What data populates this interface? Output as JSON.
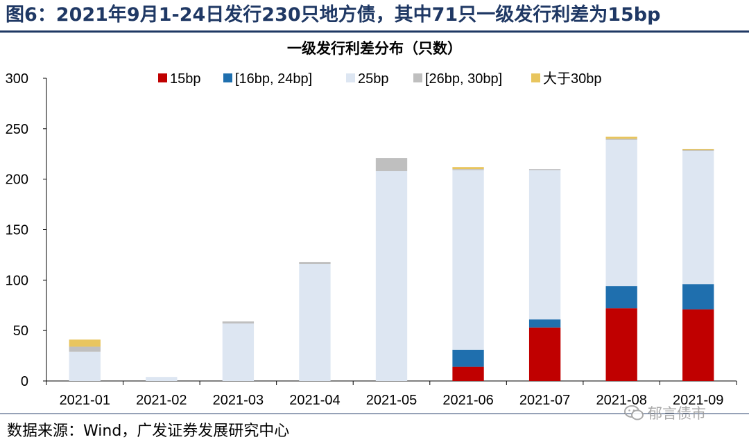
{
  "figure_title": "图6：2021年9月1-24日发行230只地方债，其中71只一级发行利差为15bp",
  "source": "数据来源：Wind，广发证券发展研究中心",
  "watermark": "郁言债市",
  "chart_data": {
    "type": "bar",
    "stacked": true,
    "title": "一级发行利差分布（只数）",
    "xlabel": "",
    "ylabel": "",
    "ylim": [
      0,
      300
    ],
    "yticks": [
      0,
      50,
      100,
      150,
      200,
      250,
      300
    ],
    "grid": false,
    "legend_position": "top",
    "categories": [
      "2021-01",
      "2021-02",
      "2021-03",
      "2021-04",
      "2021-05",
      "2021-06",
      "2021-07",
      "2021-08",
      "2021-09"
    ],
    "series": [
      {
        "name": "15bp",
        "color": "#c00000",
        "values": [
          0,
          0,
          0,
          0,
          0,
          14,
          53,
          72,
          71
        ]
      },
      {
        "name": "[16bp, 24bp]",
        "color": "#1f6fae",
        "values": [
          0,
          0,
          0,
          0,
          0,
          17,
          8,
          22,
          25
        ]
      },
      {
        "name": "25bp",
        "color": "#dde6f2",
        "values": [
          29,
          4,
          57,
          116,
          208,
          178,
          148,
          145,
          132
        ]
      },
      {
        "name": "[26bp, 30bp]",
        "color": "#bfbfbf",
        "values": [
          5,
          0,
          2,
          2,
          13,
          1,
          1,
          1,
          1
        ]
      },
      {
        "name": "大于30bp",
        "color": "#e8c55e",
        "values": [
          7,
          0,
          0,
          0,
          0,
          2,
          0,
          2,
          1
        ]
      }
    ]
  }
}
